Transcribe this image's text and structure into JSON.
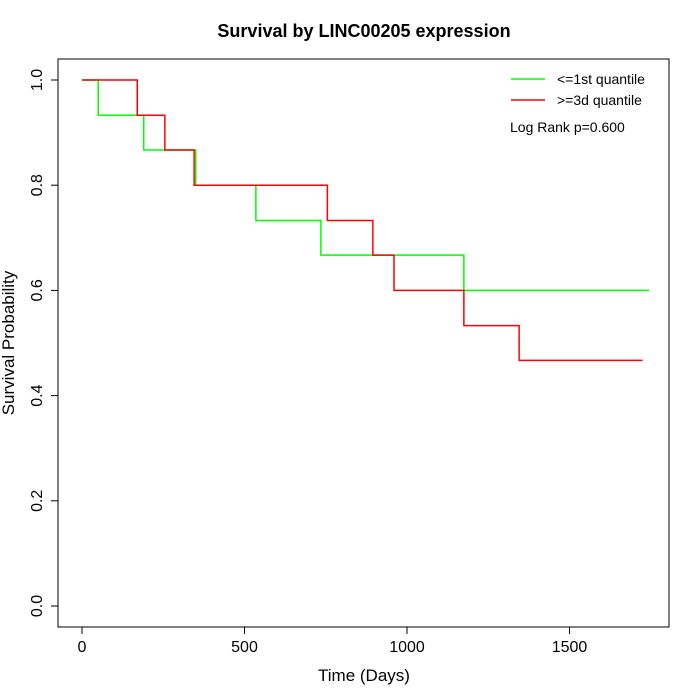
{
  "chart_data": {
    "type": "line",
    "title": "Survival by LINC00205 expression",
    "xlabel": "Time (Days)",
    "ylabel": "Survival Probability",
    "xlim": [
      0,
      1750
    ],
    "ylim": [
      0,
      1
    ],
    "xticks": [
      0,
      500,
      1000,
      1500
    ],
    "yticks": [
      0.0,
      0.2,
      0.4,
      0.6,
      0.8,
      1.0
    ],
    "xtick_labels": [
      "0",
      "500",
      "1000",
      "1500"
    ],
    "ytick_labels": [
      "0.0",
      "0.2",
      "0.4",
      "0.6",
      "0.8",
      "1.0"
    ],
    "grid": false,
    "legend_position": "top-right",
    "annotation": "Log Rank p=0.600",
    "series": [
      {
        "name": "<=1st quantile",
        "color": "#00ff00",
        "step_points": [
          [
            0,
            1.0
          ],
          [
            50,
            0.933
          ],
          [
            190,
            0.867
          ],
          [
            350,
            0.8
          ],
          [
            535,
            0.733
          ],
          [
            735,
            0.667
          ],
          [
            1175,
            0.6
          ],
          [
            1745,
            0.6
          ]
        ]
      },
      {
        "name": ">=3d quantile",
        "color": "#ff0000",
        "step_points": [
          [
            0,
            1.0
          ],
          [
            170,
            0.933
          ],
          [
            255,
            0.867
          ],
          [
            345,
            0.8
          ],
          [
            755,
            0.733
          ],
          [
            895,
            0.667
          ],
          [
            960,
            0.6
          ],
          [
            1175,
            0.533
          ],
          [
            1345,
            0.467
          ],
          [
            1725,
            0.467
          ]
        ]
      }
    ]
  }
}
